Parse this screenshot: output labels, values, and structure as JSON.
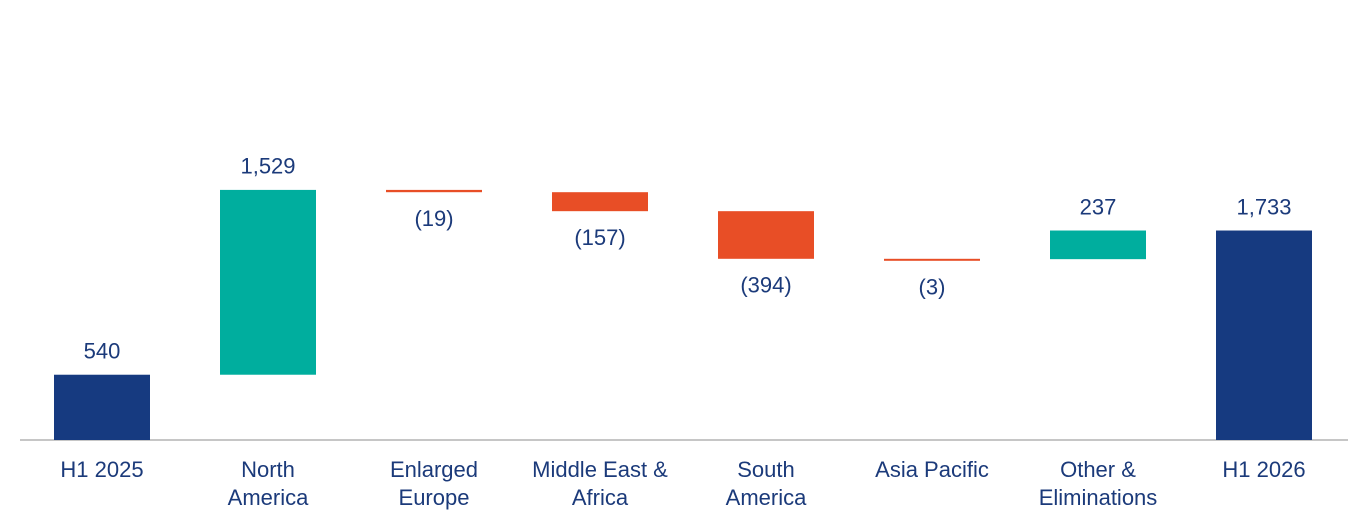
{
  "chart_data": {
    "type": "waterfall",
    "categories": [
      "H1 2025",
      "North\nAmerica",
      "Enlarged\nEurope",
      "Middle East &\nAfrica",
      "South\nAmerica",
      "Asia Pacific",
      "Other &\nEliminations",
      "H1 2026"
    ],
    "values": [
      540,
      1529,
      -19,
      -157,
      -394,
      -3,
      237,
      1733
    ],
    "value_labels": [
      "540",
      "1,529",
      "(19)",
      "(157)",
      "(394)",
      "(3)",
      "237",
      "1,733"
    ],
    "total_color": "#163a80",
    "increase_color": "#00ae9e",
    "decrease_color": "#e84e26",
    "ylim": [
      0,
      3640
    ]
  }
}
